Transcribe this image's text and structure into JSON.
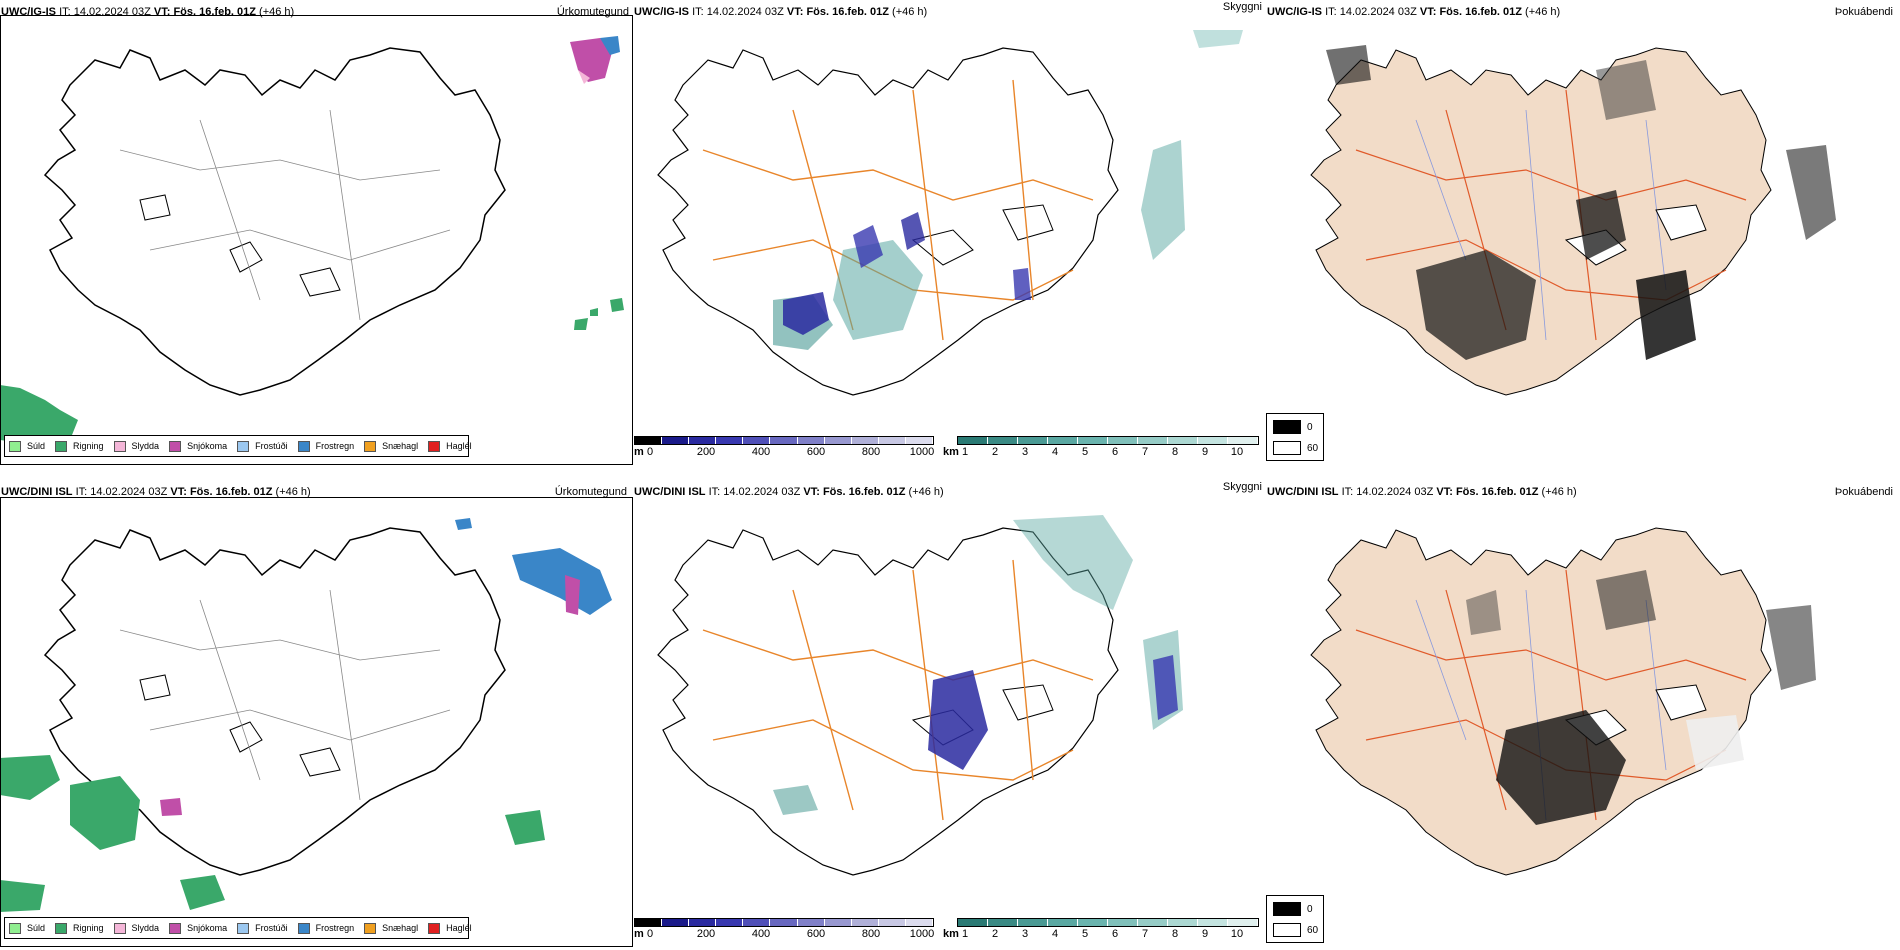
{
  "rows": [
    {
      "model": "UWC/IG-IS",
      "it_label": "IT:",
      "it_value": "14.02.2024 03Z",
      "vt_label": "VT:",
      "vt_value": "Fös. 16.feb. 01Z",
      "lead": "(+46 h)"
    },
    {
      "model": "UWC/DINI ISL",
      "it_label": "IT:",
      "it_value": "14.02.2024 03Z",
      "vt_label": "VT:",
      "vt_value": "Fös. 16.feb. 01Z",
      "lead": "(+46 h)"
    }
  ],
  "panel_titles": {
    "precip_type": "Úrkomutegund",
    "visibility": "Skyggni",
    "fog": "Þokuábendi"
  },
  "precip_legend": [
    {
      "label": "Súld",
      "color": "#90ee90"
    },
    {
      "label": "Rigning",
      "color": "#3aa86a"
    },
    {
      "label": "Slydda",
      "color": "#f4b6d8"
    },
    {
      "label": "Snjókoma",
      "color": "#c04fa8"
    },
    {
      "label": "Frostúði",
      "color": "#9cc8f0"
    },
    {
      "label": "Frostregn",
      "color": "#3a86c8"
    },
    {
      "label": "Snæhagl",
      "color": "#f0a020"
    },
    {
      "label": "Haglél",
      "color": "#e02020"
    }
  ],
  "visibility_m": {
    "unit": "m",
    "ticks": [
      "0",
      "200",
      "400",
      "600",
      "800",
      "1000"
    ],
    "colors": [
      "#000000",
      "#1a1a8a",
      "#2a2aa0",
      "#3838b0",
      "#5050b8",
      "#6868c0",
      "#8080c8",
      "#9898d0",
      "#b0b0d8",
      "#c8c8e4",
      "#dcdcee"
    ]
  },
  "visibility_km": {
    "unit": "km",
    "ticks": [
      "1",
      "2",
      "3",
      "4",
      "5",
      "6",
      "7",
      "8",
      "9",
      "10"
    ],
    "colors": [
      "#2a7a74",
      "#3a8a84",
      "#4a9a94",
      "#5aa8a2",
      "#6ab4ae",
      "#80c0ba",
      "#96ccc6",
      "#acd8d2",
      "#c4e4e0",
      "#e0f0ee"
    ]
  },
  "fog_legend": [
    {
      "value": "0",
      "color": "#000000"
    },
    {
      "value": "60",
      "color": "#ffffff"
    }
  ],
  "colors": {
    "land_fog": "#f2dcc8",
    "roads": "#e8852a",
    "rivers": "#8899dd",
    "coast": "#000000",
    "glacier": "#ffffff"
  }
}
